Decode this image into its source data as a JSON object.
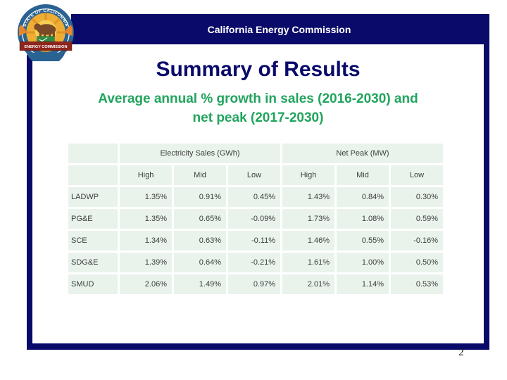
{
  "banner": {
    "title": "California Energy Commission"
  },
  "logo": {
    "top_text": "STATE OF CALIFORNIA",
    "bottom_text": "ENERGY COMMISSION"
  },
  "heading": {
    "title": "Summary of Results"
  },
  "subtitle": {
    "line1": "Average annual % growth in sales (2016-2030) and",
    "line2": "net peak (2017-2030)"
  },
  "table": {
    "group_headers": [
      {
        "label": "Electricity Sales (GWh)",
        "colspan": 3
      },
      {
        "label": "Net Peak (MW)",
        "colspan": 3
      }
    ],
    "column_headers": [
      "High",
      "Mid",
      "Low",
      "High",
      "Mid",
      "Low"
    ],
    "rows": [
      {
        "label": "LADWP",
        "values": [
          "1.35%",
          "0.91%",
          "0.45%",
          "1.43%",
          "0.84%",
          "0.30%"
        ]
      },
      {
        "label": "PG&E",
        "values": [
          "1.35%",
          "0.65%",
          "-0.09%",
          "1.73%",
          "1.08%",
          "0.59%"
        ]
      },
      {
        "label": "SCE",
        "values": [
          "1.34%",
          "0.63%",
          "-0.11%",
          "1.46%",
          "0.55%",
          "-0.16%"
        ]
      },
      {
        "label": "SDG&E",
        "values": [
          "1.39%",
          "0.64%",
          "-0.21%",
          "1.61%",
          "1.00%",
          "0.50%"
        ]
      },
      {
        "label": "SMUD",
        "values": [
          "2.06%",
          "1.49%",
          "0.97%",
          "2.01%",
          "1.14%",
          "0.53%"
        ]
      }
    ]
  },
  "page_number": "2",
  "colors": {
    "navy": "#0a0a6b",
    "green": "#21a45d",
    "cell_bg": "#e9f3ec",
    "table_text": "#3d3d3d"
  }
}
